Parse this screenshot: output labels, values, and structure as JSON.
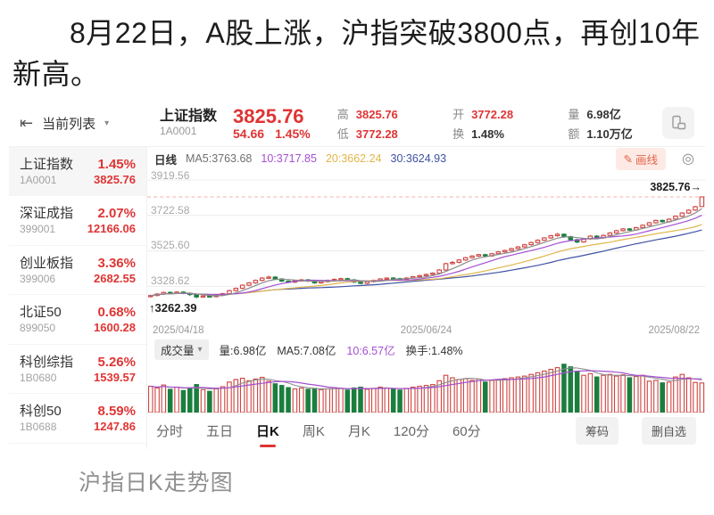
{
  "headline": "8月22日，A股上涨，沪指突破3800点，再创10年新高。",
  "caption": "沪指日K走势图",
  "toolbar": {
    "list_label": "当前列表",
    "caret": "▾",
    "collapse_icon": "⇤"
  },
  "quote": {
    "name": "上证指数",
    "code": "1A0001",
    "price": "3825.76",
    "change": "54.66",
    "change_pct": "1.45%",
    "stats": [
      {
        "label": "高",
        "value": "3825.76"
      },
      {
        "label": "低",
        "value": "3772.28"
      },
      {
        "label": "开",
        "value": "3772.28"
      },
      {
        "label": "换",
        "value": "1.48%"
      },
      {
        "label": "量",
        "value": "6.98亿"
      },
      {
        "label": "额",
        "value": "1.10万亿"
      }
    ]
  },
  "watchlist": [
    {
      "name": "上证指数",
      "code": "1A0001",
      "pct": "1.45%",
      "price": "3825.76"
    },
    {
      "name": "深证成指",
      "code": "399001",
      "pct": "2.07%",
      "price": "12166.06"
    },
    {
      "name": "创业板指",
      "code": "399006",
      "pct": "3.36%",
      "price": "2682.55"
    },
    {
      "name": "北证50",
      "code": "899050",
      "pct": "0.68%",
      "price": "1600.28"
    },
    {
      "name": "科创综指",
      "code": "1B0680",
      "pct": "5.26%",
      "price": "1539.57"
    },
    {
      "name": "科创50",
      "code": "1B0688",
      "pct": "8.59%",
      "price": "1247.86"
    }
  ],
  "ma_legend": {
    "period": "日线",
    "ma5": "MA5:3763.68",
    "ma10": "10:3717.85",
    "ma20": "20:3662.24",
    "ma30": "30:3624.93",
    "draw_label": "画线",
    "pencil": "✎",
    "gear": "◎"
  },
  "volume_header": {
    "selector": "成交量",
    "caret": "▾",
    "vol": "量:6.98亿",
    "ma5": "MA5:7.08亿",
    "ma10": "10:6.57亿",
    "turnover": "换手:1.48%"
  },
  "tabs": [
    {
      "label": "分时"
    },
    {
      "label": "五日"
    },
    {
      "label": "日K"
    },
    {
      "label": "周K"
    },
    {
      "label": "月K"
    },
    {
      "label": "120分"
    },
    {
      "label": "60分"
    }
  ],
  "actions": {
    "chips": "筹码",
    "delete": "删自选"
  },
  "chart_data": {
    "type": "candlestick",
    "title": "上证指数 日K",
    "x_ticks": [
      "2025/04/18",
      "2025/06/24",
      "2025/08/22"
    ],
    "y_ticks": [
      {
        "value": 3919.56,
        "label": "3919.56"
      },
      {
        "value": 3722.58,
        "label": "3722.58"
      },
      {
        "value": 3525.6,
        "label": "3525.60"
      },
      {
        "value": 3328.62,
        "label": "3328.62"
      }
    ],
    "y_range": [
      3118,
      3969
    ],
    "current_price": 3825.76,
    "current_price_label": "3825.76→",
    "low_value": 3262.39,
    "low_label": "↑3262.39",
    "ma_periods": [
      5,
      10,
      20,
      30
    ],
    "colors": {
      "up": "#cf4440",
      "down": "#1b7e3e",
      "ma5": "#8c8c8c",
      "ma10": "#a44fd2",
      "ma20": "#e0b64a",
      "ma30": "#3f51a3",
      "price_line": "#f0b3ad",
      "grid": "#ececec"
    },
    "candles": [
      [
        3272,
        3283,
        3267,
        3278
      ],
      [
        3278,
        3291,
        3273,
        3286
      ],
      [
        3286,
        3300,
        3281,
        3295
      ],
      [
        3295,
        3300,
        3286,
        3291
      ],
      [
        3291,
        3302,
        3286,
        3297
      ],
      [
        3297,
        3302,
        3285,
        3290
      ],
      [
        3290,
        3295,
        3275,
        3283
      ],
      [
        3283,
        3288,
        3262.39,
        3270
      ],
      [
        3270,
        3281,
        3265,
        3276
      ],
      [
        3276,
        3281,
        3267,
        3272
      ],
      [
        3272,
        3285,
        3267,
        3280
      ],
      [
        3280,
        3293,
        3275,
        3288
      ],
      [
        3288,
        3310,
        3283,
        3305
      ],
      [
        3305,
        3323,
        3300,
        3318
      ],
      [
        3318,
        3340,
        3313,
        3335
      ],
      [
        3335,
        3353,
        3330,
        3348
      ],
      [
        3348,
        3367,
        3343,
        3362
      ],
      [
        3362,
        3380,
        3357,
        3375
      ],
      [
        3375,
        3388,
        3370,
        3380
      ],
      [
        3380,
        3385,
        3365,
        3370
      ],
      [
        3370,
        3375,
        3353,
        3358
      ],
      [
        3358,
        3363,
        3347,
        3352
      ],
      [
        3352,
        3365,
        3347,
        3360
      ],
      [
        3360,
        3370,
        3355,
        3365
      ],
      [
        3365,
        3370,
        3353,
        3358
      ],
      [
        3358,
        3363,
        3343,
        3348
      ],
      [
        3348,
        3360,
        3343,
        3355
      ],
      [
        3355,
        3367,
        3350,
        3362
      ],
      [
        3362,
        3373,
        3357,
        3368
      ],
      [
        3368,
        3377,
        3363,
        3372
      ],
      [
        3372,
        3377,
        3360,
        3365
      ],
      [
        3365,
        3370,
        3347,
        3352
      ],
      [
        3352,
        3357,
        3340,
        3345
      ],
      [
        3345,
        3360,
        3340,
        3355
      ],
      [
        3355,
        3367,
        3350,
        3362
      ],
      [
        3362,
        3375,
        3357,
        3370
      ],
      [
        3370,
        3380,
        3365,
        3375
      ],
      [
        3375,
        3380,
        3367,
        3372
      ],
      [
        3372,
        3377,
        3363,
        3368
      ],
      [
        3368,
        3380,
        3363,
        3375
      ],
      [
        3375,
        3387,
        3370,
        3382
      ],
      [
        3382,
        3393,
        3377,
        3388
      ],
      [
        3388,
        3400,
        3383,
        3395
      ],
      [
        3395,
        3407,
        3390,
        3402
      ],
      [
        3402,
        3425,
        3397,
        3420
      ],
      [
        3420,
        3460,
        3415,
        3455
      ],
      [
        3455,
        3470,
        3450,
        3462
      ],
      [
        3462,
        3480,
        3457,
        3475
      ],
      [
        3475,
        3493,
        3470,
        3488
      ],
      [
        3488,
        3502,
        3483,
        3497
      ],
      [
        3497,
        3510,
        3492,
        3505
      ],
      [
        3505,
        3510,
        3493,
        3498
      ],
      [
        3498,
        3515,
        3493,
        3510
      ],
      [
        3510,
        3525,
        3505,
        3520
      ],
      [
        3520,
        3533,
        3515,
        3528
      ],
      [
        3528,
        3543,
        3523,
        3538
      ],
      [
        3538,
        3553,
        3533,
        3548
      ],
      [
        3548,
        3565,
        3543,
        3560
      ],
      [
        3560,
        3577,
        3555,
        3572
      ],
      [
        3572,
        3590,
        3567,
        3585
      ],
      [
        3585,
        3603,
        3580,
        3598
      ],
      [
        3598,
        3615,
        3593,
        3610
      ],
      [
        3610,
        3626,
        3605,
        3618
      ],
      [
        3618,
        3623,
        3598,
        3605
      ],
      [
        3605,
        3610,
        3583,
        3588
      ],
      [
        3588,
        3593,
        3568,
        3575
      ],
      [
        3575,
        3597,
        3570,
        3592
      ],
      [
        3592,
        3613,
        3587,
        3608
      ],
      [
        3608,
        3613,
        3593,
        3598
      ],
      [
        3598,
        3617,
        3593,
        3612
      ],
      [
        3612,
        3630,
        3607,
        3625
      ],
      [
        3625,
        3643,
        3620,
        3638
      ],
      [
        3638,
        3653,
        3633,
        3648
      ],
      [
        3648,
        3653,
        3637,
        3642
      ],
      [
        3642,
        3660,
        3637,
        3655
      ],
      [
        3655,
        3673,
        3650,
        3668
      ],
      [
        3668,
        3687,
        3663,
        3682
      ],
      [
        3682,
        3700,
        3677,
        3695
      ],
      [
        3695,
        3700,
        3683,
        3688
      ],
      [
        3688,
        3707,
        3683,
        3702
      ],
      [
        3702,
        3723,
        3697,
        3718
      ],
      [
        3718,
        3741,
        3713,
        3736
      ],
      [
        3736,
        3757,
        3731,
        3752
      ],
      [
        3752,
        3776,
        3747,
        3771
      ],
      [
        3772.28,
        3825.76,
        3772.28,
        3825.76
      ]
    ],
    "volumes": [
      6.2,
      5.8,
      6.5,
      5.5,
      6.0,
      5.2,
      5.8,
      6.6,
      5.4,
      5.0,
      5.6,
      6.1,
      7.2,
      7.8,
      8.1,
      7.5,
      7.9,
      8.3,
      7.4,
      6.8,
      6.4,
      5.9,
      5.6,
      5.8,
      5.5,
      5.7,
      5.4,
      5.6,
      5.9,
      5.7,
      5.3,
      5.8,
      6.0,
      5.5,
      5.7,
      6.0,
      5.8,
      5.5,
      5.3,
      5.7,
      6.0,
      6.2,
      6.4,
      6.6,
      7.5,
      8.8,
      8.2,
      7.8,
      8.0,
      7.6,
      7.9,
      7.2,
      7.6,
      7.8,
      8.0,
      8.2,
      8.4,
      8.6,
      9.0,
      9.4,
      9.8,
      10.2,
      10.6,
      11.4,
      10.8,
      9.6,
      8.8,
      9.2,
      8.4,
      8.8,
      9.0,
      8.6,
      8.9,
      8.2,
      8.5,
      8.8,
      7.4,
      7.6,
      7.0,
      7.2,
      8.4,
      9.0,
      8.2,
      7.1,
      6.98
    ],
    "vol_range": [
      0,
      12.2
    ],
    "vol_unit": "亿",
    "legend_position": "top-left",
    "grid": true
  }
}
